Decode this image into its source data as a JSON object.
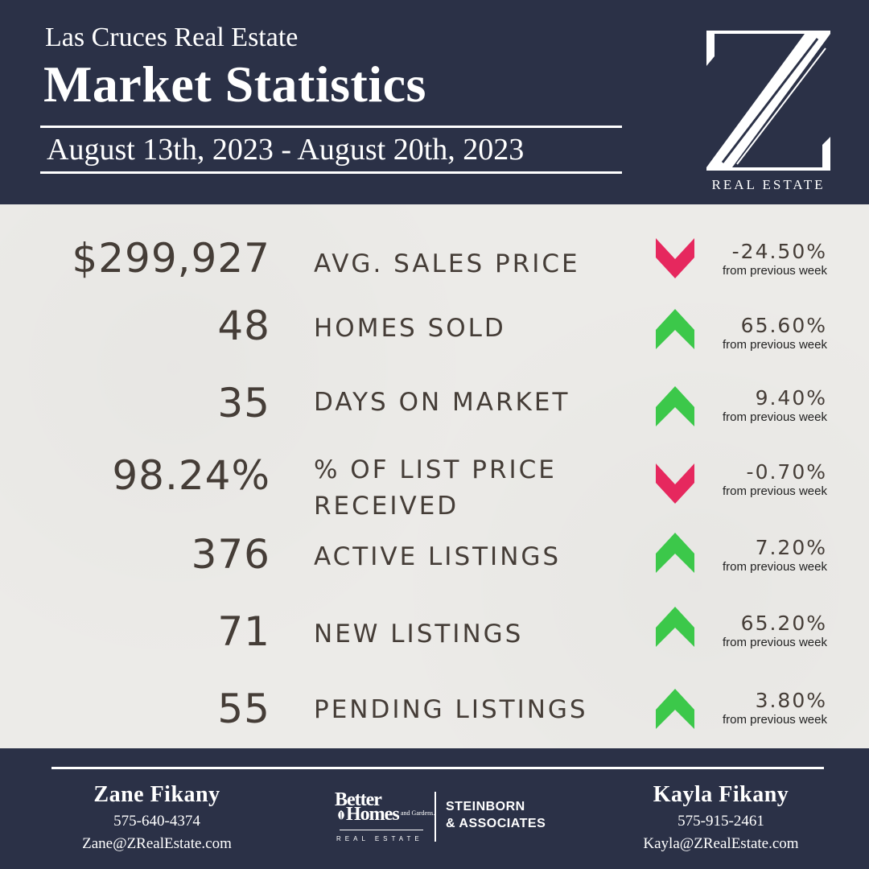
{
  "header": {
    "subtitle": "Las Cruces Real Estate",
    "title": "Market Statistics",
    "date_range": "August 13th, 2023 - August 20th, 2023",
    "logo_letter": "Z",
    "logo_caption": "REAL ESTATE"
  },
  "colors": {
    "navy": "#2b3147",
    "up": "#3cc84a",
    "down": "#e6285e",
    "text": "#453d37",
    "background": "#ecebe8"
  },
  "stats": [
    {
      "value": "$299,927",
      "label": "AVG. SALES PRICE",
      "direction": "down",
      "change": "-24.50%",
      "note": "from previous week"
    },
    {
      "value": "48",
      "label": "HOMES SOLD",
      "direction": "up",
      "change": "65.60%",
      "note": "from previous week"
    },
    {
      "value": "35",
      "label": "DAYS ON MARKET",
      "direction": "up",
      "change": "9.40%",
      "note": "from previous week"
    },
    {
      "value": "98.24%",
      "label": "% OF LIST PRICE RECEIVED",
      "direction": "down",
      "change": "-0.70%",
      "note": "from previous week"
    },
    {
      "value": "376",
      "label": "ACTIVE LISTINGS",
      "direction": "up",
      "change": "7.20%",
      "note": "from previous week"
    },
    {
      "value": "71",
      "label": "NEW LISTINGS",
      "direction": "up",
      "change": "65.20%",
      "note": "from previous week"
    },
    {
      "value": "55",
      "label": "PENDING LISTINGS",
      "direction": "up",
      "change": "3.80%",
      "note": "from previous week"
    }
  ],
  "footer": {
    "agent_left": {
      "name": "Zane Fikany",
      "phone": "575-640-4374",
      "email": "Zane@ZRealEstate.com"
    },
    "agent_right": {
      "name": "Kayla Fikany",
      "phone": "575-915-2461",
      "email": "Kayla@ZRealEstate.com"
    },
    "brand": {
      "line1": "Better",
      "line2": "Homes",
      "line3": "and Gardens.",
      "line4": "REAL ESTATE",
      "partner1": "STEINBORN",
      "partner2": "& ASSOCIATES"
    }
  }
}
